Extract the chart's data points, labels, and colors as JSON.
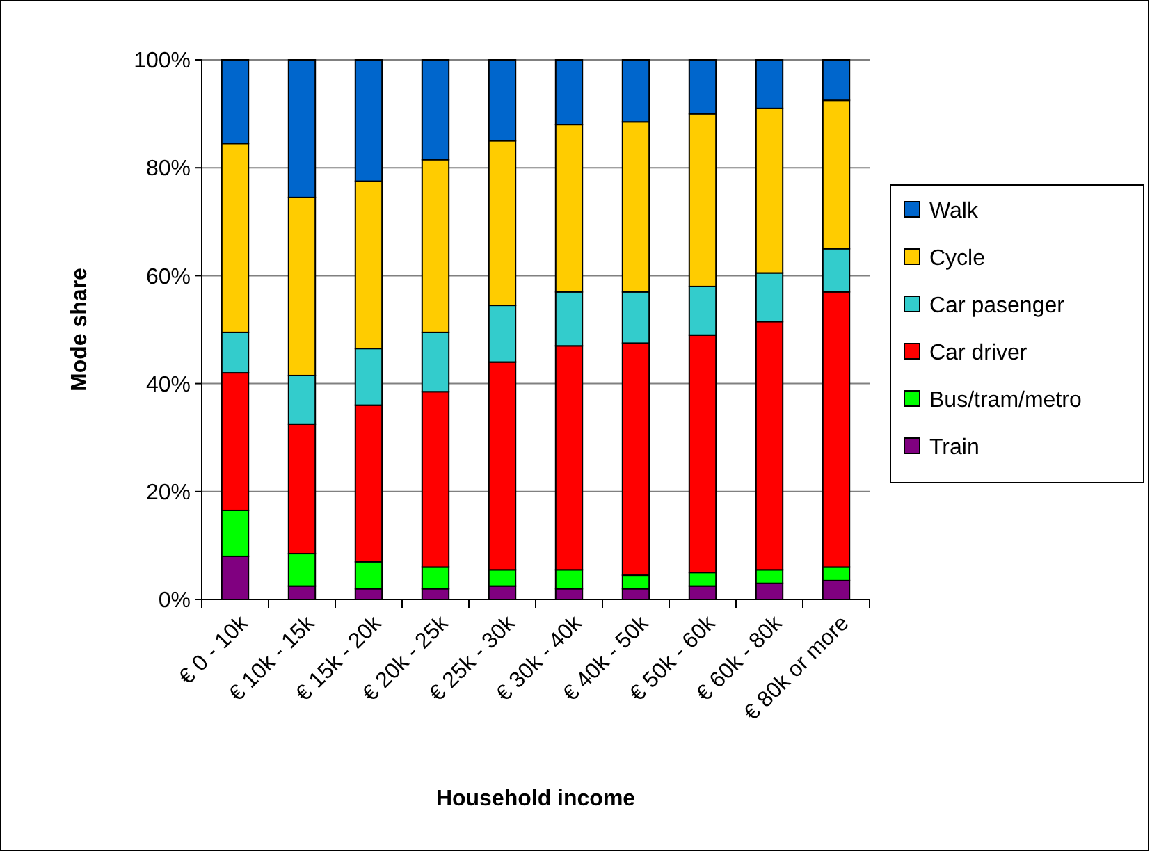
{
  "chart_data": {
    "type": "bar",
    "stacked": true,
    "xlabel": "Household income",
    "ylabel": "Mode share",
    "categories": [
      "€ 0 - 10k",
      "€ 10k - 15k",
      "€ 15k - 20k",
      "€ 20k - 25k",
      "€ 25k - 30k",
      "€ 30k - 40k",
      "€ 40k - 50k",
      "€ 50k - 60k",
      "€ 60k - 80k",
      "€ 80k or more"
    ],
    "series": [
      {
        "name": "Train",
        "color": "#800080",
        "values": [
          8,
          2.5,
          2,
          2,
          2.5,
          2,
          2,
          2.5,
          3,
          3.5
        ]
      },
      {
        "name": "Bus/tram/metro",
        "color": "#00ff00",
        "values": [
          8.5,
          6,
          5,
          4,
          3,
          3.5,
          2.5,
          2.5,
          2.5,
          2.5
        ]
      },
      {
        "name": "Car driver",
        "color": "#ff0000",
        "values": [
          25.5,
          24,
          29,
          32.5,
          38.5,
          41.5,
          43,
          44,
          46,
          51
        ]
      },
      {
        "name": "Car pasenger",
        "color": "#33cccc",
        "values": [
          7.5,
          9,
          10.5,
          11,
          10.5,
          10,
          9.5,
          9,
          9,
          8
        ]
      },
      {
        "name": "Cycle",
        "color": "#ffcc00",
        "values": [
          35,
          33,
          31,
          32,
          30.5,
          31,
          31.5,
          32,
          30.5,
          27.5
        ]
      },
      {
        "name": "Walk",
        "color": "#0066cc",
        "values": [
          15.5,
          25.5,
          22.5,
          18.5,
          15,
          12,
          11.5,
          10,
          9,
          7.5
        ]
      }
    ],
    "ylim": [
      0,
      100
    ],
    "yticks": [
      {
        "value": 0,
        "label": "0%"
      },
      {
        "value": 20,
        "label": "20%"
      },
      {
        "value": 40,
        "label": "40%"
      },
      {
        "value": 60,
        "label": "60%"
      },
      {
        "value": 80,
        "label": "80%"
      },
      {
        "value": 100,
        "label": "100%"
      }
    ],
    "grid": "y",
    "legend": "right"
  }
}
